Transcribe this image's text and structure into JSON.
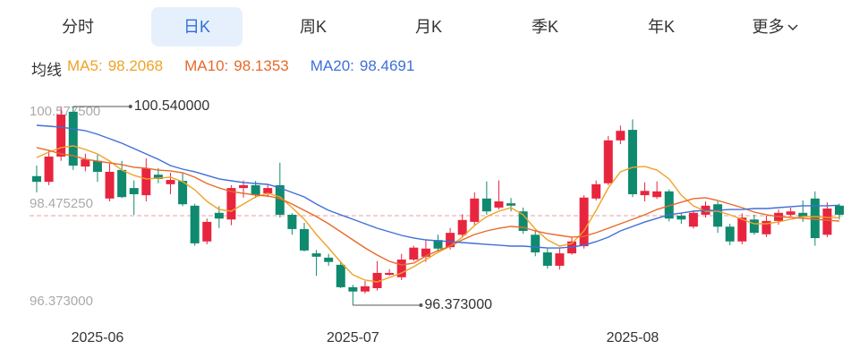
{
  "tabs": [
    "分时",
    "日K",
    "周K",
    "月K",
    "季K",
    "年K",
    "更多"
  ],
  "selected_tab": 1,
  "ma_label": "均线",
  "chart_data": {
    "type": "candlestick",
    "categories": [
      null,
      null,
      null,
      null,
      null,
      "2025-06",
      null,
      null,
      null,
      null,
      null,
      null,
      null,
      null,
      null,
      null,
      null,
      null,
      null,
      null,
      null,
      null,
      null,
      null,
      null,
      null,
      "2025-07",
      null,
      null,
      null,
      null,
      null,
      null,
      null,
      null,
      null,
      null,
      null,
      null,
      null,
      null,
      null,
      null,
      null,
      null,
      null,
      null,
      null,
      null,
      "2025-08",
      null,
      null,
      null,
      null,
      null,
      null,
      null,
      null,
      null,
      null,
      null,
      null,
      null,
      null,
      null,
      null,
      null
    ],
    "open": [
      99.08,
      98.96,
      99.49,
      100.43,
      99.28,
      99.4,
      98.61,
      99.21,
      98.83,
      98.68,
      99.11,
      98.91,
      98.98,
      98.46,
      97.71,
      98.31,
      98.17,
      98.83,
      98.89,
      98.72,
      98.89,
      98.27,
      97.97,
      97.46,
      97.37,
      97.22,
      96.75,
      96.66,
      96.73,
      97.01,
      96.96,
      97.33,
      97.39,
      97.74,
      97.59,
      97.85,
      98.12,
      98.61,
      98.42,
      98.51,
      98.34,
      97.85,
      97.48,
      97.2,
      97.46,
      97.61,
      98.61,
      98.93,
      99.83,
      100.05,
      98.68,
      98.64,
      98.76,
      98.25,
      98.02,
      98.27,
      98.49,
      98.02,
      97.71,
      98.17,
      97.86,
      98.14,
      98.27,
      98.31,
      98.61,
      97.85,
      98.46
    ],
    "high": [
      99.3,
      99.62,
      100.52,
      100.54,
      99.55,
      99.53,
      99.36,
      99.4,
      98.99,
      99.45,
      99.25,
      99.15,
      99.15,
      98.5,
      98.19,
      98.45,
      98.89,
      98.99,
      98.98,
      98.9,
      99.36,
      98.3,
      98.1,
      97.53,
      97.45,
      97.3,
      96.8,
      96.88,
      97.3,
      97.13,
      97.45,
      97.62,
      97.75,
      97.85,
      97.99,
      98.28,
      98.74,
      98.97,
      98.99,
      98.62,
      98.42,
      97.95,
      97.56,
      97.56,
      97.8,
      98.68,
      98.99,
      99.92,
      100.14,
      100.27,
      98.95,
      98.97,
      98.8,
      98.3,
      98.36,
      98.55,
      98.55,
      98.08,
      98.3,
      98.27,
      98.25,
      98.38,
      98.42,
      98.57,
      98.76,
      98.53,
      98.5
    ],
    "low": [
      98.74,
      98.89,
      99.4,
      99.21,
      99.18,
      98.96,
      98.55,
      98.62,
      98.27,
      98.55,
      98.93,
      98.7,
      98.45,
      97.62,
      97.65,
      97.99,
      98.05,
      98.63,
      98.62,
      98.64,
      98.21,
      97.85,
      97.5,
      96.99,
      97.2,
      96.73,
      96.373,
      96.62,
      96.68,
      96.99,
      96.9,
      97.3,
      97.28,
      97.5,
      97.54,
      97.8,
      98.05,
      98.27,
      98.38,
      98.34,
      97.87,
      97.4,
      97.14,
      97.12,
      97.43,
      97.56,
      98.57,
      98.89,
      99.75,
      98.64,
      98.55,
      98.6,
      98.13,
      98.08,
      97.98,
      98.21,
      97.89,
      97.63,
      97.65,
      97.85,
      97.8,
      98.06,
      98.23,
      98.12,
      97.62,
      97.8,
      98.17
    ],
    "close": [
      98.96,
      99.49,
      100.37,
      99.3,
      99.43,
      99.17,
      99.17,
      98.64,
      98.7,
      99.24,
      99.02,
      99.0,
      98.49,
      97.67,
      98.12,
      98.19,
      98.83,
      98.89,
      98.68,
      98.83,
      98.27,
      97.97,
      97.52,
      97.39,
      97.28,
      96.75,
      96.66,
      96.77,
      97.05,
      97.05,
      97.33,
      97.58,
      97.56,
      97.56,
      97.89,
      98.16,
      98.61,
      98.34,
      98.55,
      98.46,
      97.93,
      97.48,
      97.2,
      97.46,
      97.71,
      98.63,
      98.91,
      99.83,
      100.03,
      98.7,
      98.77,
      98.76,
      98.19,
      98.17,
      98.31,
      98.46,
      98.02,
      97.71,
      98.21,
      97.89,
      98.14,
      98.31,
      98.34,
      98.23,
      97.78,
      98.4,
      98.27
    ],
    "up_color": "#e8253f",
    "down_color": "#0f8a6e",
    "series": [
      {
        "name": "MA5:",
        "color": "#f0a226",
        "values": [
          99.47,
          99.583,
          99.677,
          99.714,
          99.639,
          99.545,
          99.395,
          99.207,
          99.095,
          99.02,
          99.038,
          99.057,
          98.963,
          98.794,
          98.55,
          98.381,
          98.344,
          98.494,
          98.644,
          98.719,
          98.644,
          98.419,
          98.175,
          97.856,
          97.574,
          97.274,
          97.011,
          96.899,
          96.861,
          96.955,
          97.049,
          97.18,
          97.33,
          97.481,
          97.612,
          97.8,
          98.044,
          98.231,
          98.344,
          98.419,
          98.269,
          97.969,
          97.743,
          97.612,
          97.668,
          97.931,
          98.363,
          98.832,
          99.17,
          99.264,
          99.283,
          99.207,
          99.02,
          98.682,
          98.457,
          98.344,
          98.344,
          98.269,
          98.175,
          98.081,
          98.081,
          98.119,
          98.175,
          98.231,
          98.231,
          98.213,
          98.2068
        ]
      },
      {
        "name": "MA10:",
        "color": "#e8692a",
        "values": [
          99.677,
          99.62,
          99.545,
          99.508,
          99.433,
          99.395,
          99.357,
          99.32,
          99.264,
          99.245,
          99.207,
          99.189,
          99.151,
          99.057,
          98.926,
          98.832,
          98.757,
          98.719,
          98.682,
          98.663,
          98.607,
          98.494,
          98.363,
          98.231,
          98.081,
          97.912,
          97.743,
          97.574,
          97.424,
          97.293,
          97.218,
          97.255,
          97.405,
          97.518,
          97.612,
          97.743,
          97.856,
          97.931,
          97.987,
          98.025,
          98.006,
          97.931,
          97.875,
          97.837,
          97.8,
          97.818,
          97.893,
          97.987,
          98.081,
          98.175,
          98.269,
          98.381,
          98.457,
          98.532,
          98.607,
          98.626,
          98.569,
          98.494,
          98.419,
          98.325,
          98.269,
          98.231,
          98.213,
          98.194,
          98.175,
          98.156,
          98.1353
        ]
      },
      {
        "name": "MA20:",
        "color": "#3f6fd8",
        "values": [
          100.146,
          100.127,
          100.108,
          100.071,
          100.033,
          99.958,
          99.864,
          99.77,
          99.658,
          99.545,
          99.433,
          99.301,
          99.226,
          99.17,
          99.095,
          99.02,
          98.982,
          98.945,
          98.926,
          98.907,
          98.832,
          98.738,
          98.644,
          98.494,
          98.363,
          98.269,
          98.175,
          98.081,
          97.987,
          97.912,
          97.837,
          97.781,
          97.743,
          97.724,
          97.706,
          97.687,
          97.668,
          97.649,
          97.631,
          97.612,
          97.612,
          97.593,
          97.574,
          97.574,
          97.593,
          97.631,
          97.706,
          97.8,
          97.931,
          98.025,
          98.118,
          98.194,
          98.269,
          98.306,
          98.344,
          98.363,
          98.363,
          98.381,
          98.381,
          98.4,
          98.4,
          98.419,
          98.438,
          98.457,
          98.457,
          98.457,
          98.4691
        ]
      }
    ],
    "ylim": [
      96.373,
      100.5775
    ],
    "yticks": [
      {
        "value": 100.5775,
        "label": "100.577500"
      },
      {
        "value": 98.47525,
        "label": "98.475250"
      },
      {
        "value": 96.373,
        "label": "96.373000"
      }
    ],
    "reference_line": 98.25,
    "max_annotation": {
      "value": 100.54,
      "label": "100.540000"
    },
    "min_annotation": {
      "value": 96.373,
      "label": "96.373000"
    }
  }
}
